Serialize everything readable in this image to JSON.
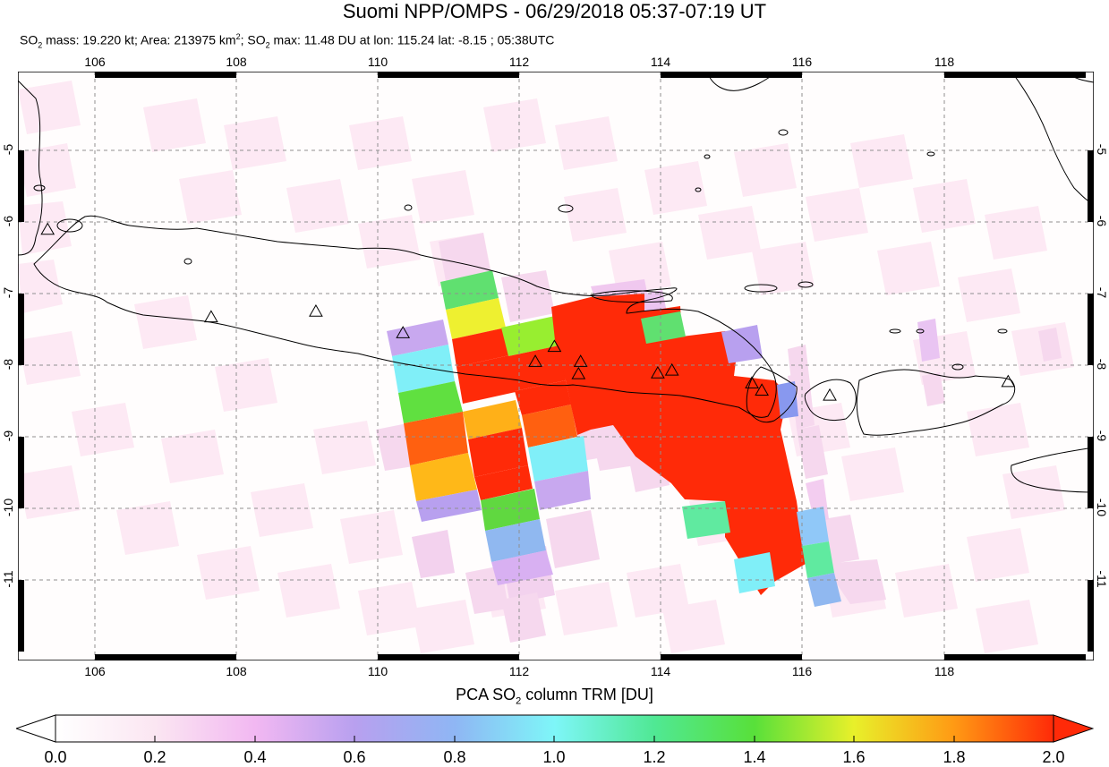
{
  "title": "Suomi NPP/OMPS - 06/29/2018 05:37-07:19 UT",
  "subtitle": {
    "mass_prefix": "SO",
    "mass_sub": "2",
    "mass_text": " mass: 19.220 kt; Area: 213975 km",
    "area_sup": "2",
    "max_prefix": "; SO",
    "max_sub": "2",
    "max_text": " max: 11.48 DU at lon: 115.24 lat: -8.15 ; 05:38UTC"
  },
  "map": {
    "lon_range": [
      105,
      120.2
    ],
    "lat_range": [
      -12.1,
      -3.9
    ],
    "lon_ticks": [
      "106",
      "108",
      "110",
      "112",
      "114",
      "116",
      "118"
    ],
    "lat_ticks": [
      "-5",
      "-6",
      "-7",
      "-8",
      "-9",
      "-10",
      "-11"
    ],
    "grid": true,
    "volcano_marker": "triangle-icon",
    "volcanoes": [
      {
        "lon": 105.42,
        "lat": -6.1
      },
      {
        "lon": 107.73,
        "lat": -7.32
      },
      {
        "lon": 109.21,
        "lat": -7.24
      },
      {
        "lon": 110.44,
        "lat": -7.54
      },
      {
        "lon": 112.31,
        "lat": -7.94
      },
      {
        "lon": 112.58,
        "lat": -7.73
      },
      {
        "lon": 112.95,
        "lat": -7.94
      },
      {
        "lon": 112.92,
        "lat": -8.11
      },
      {
        "lon": 114.04,
        "lat": -8.1
      },
      {
        "lon": 114.24,
        "lat": -8.06
      },
      {
        "lon": 115.37,
        "lat": -8.24
      },
      {
        "lon": 115.51,
        "lat": -8.34
      },
      {
        "lon": 116.47,
        "lat": -8.41
      },
      {
        "lon": 118.99,
        "lat": -8.22
      }
    ]
  },
  "colorbar": {
    "title_prefix": "PCA SO",
    "title_sub": "2",
    "title_suffix": " column TRM [DU]",
    "min": 0.0,
    "max": 2.0,
    "ticks": [
      "0.0",
      "0.2",
      "0.4",
      "0.6",
      "0.8",
      "1.0",
      "1.2",
      "1.4",
      "1.6",
      "1.8",
      "2.0"
    ]
  }
}
